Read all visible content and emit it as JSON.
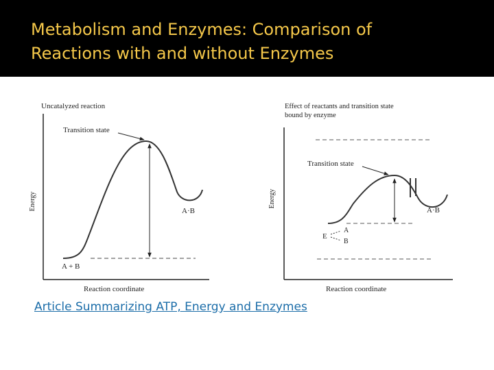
{
  "slide": {
    "title_line1": "Metabolism and Enzymes:  Comparison of",
    "title_line2": "Reactions with and without Enzymes",
    "title_color": "#f5c84a",
    "header_color": "#000000",
    "link_text": "Article Summarizing ATP, Energy and Enzymes",
    "link_color": "#1a6ca8"
  },
  "left_diagram": {
    "title": "Uncatalyzed reaction",
    "transition_label": "Transition state",
    "y_axis_label": "Energy",
    "x_axis_label": "Reaction coordinate",
    "product_label": "A·B",
    "reactant_label": "A + B"
  },
  "right_diagram": {
    "title_line1": "Effect of reactants and transition state",
    "title_line2": "bound by enzyme",
    "transition_label": "Transition state",
    "y_axis_label": "Energy",
    "x_axis_label": "Reaction coordinate",
    "product_label": "A·B",
    "enzyme_label": "E",
    "bound_a_label": "A",
    "bound_b_label": "B"
  }
}
